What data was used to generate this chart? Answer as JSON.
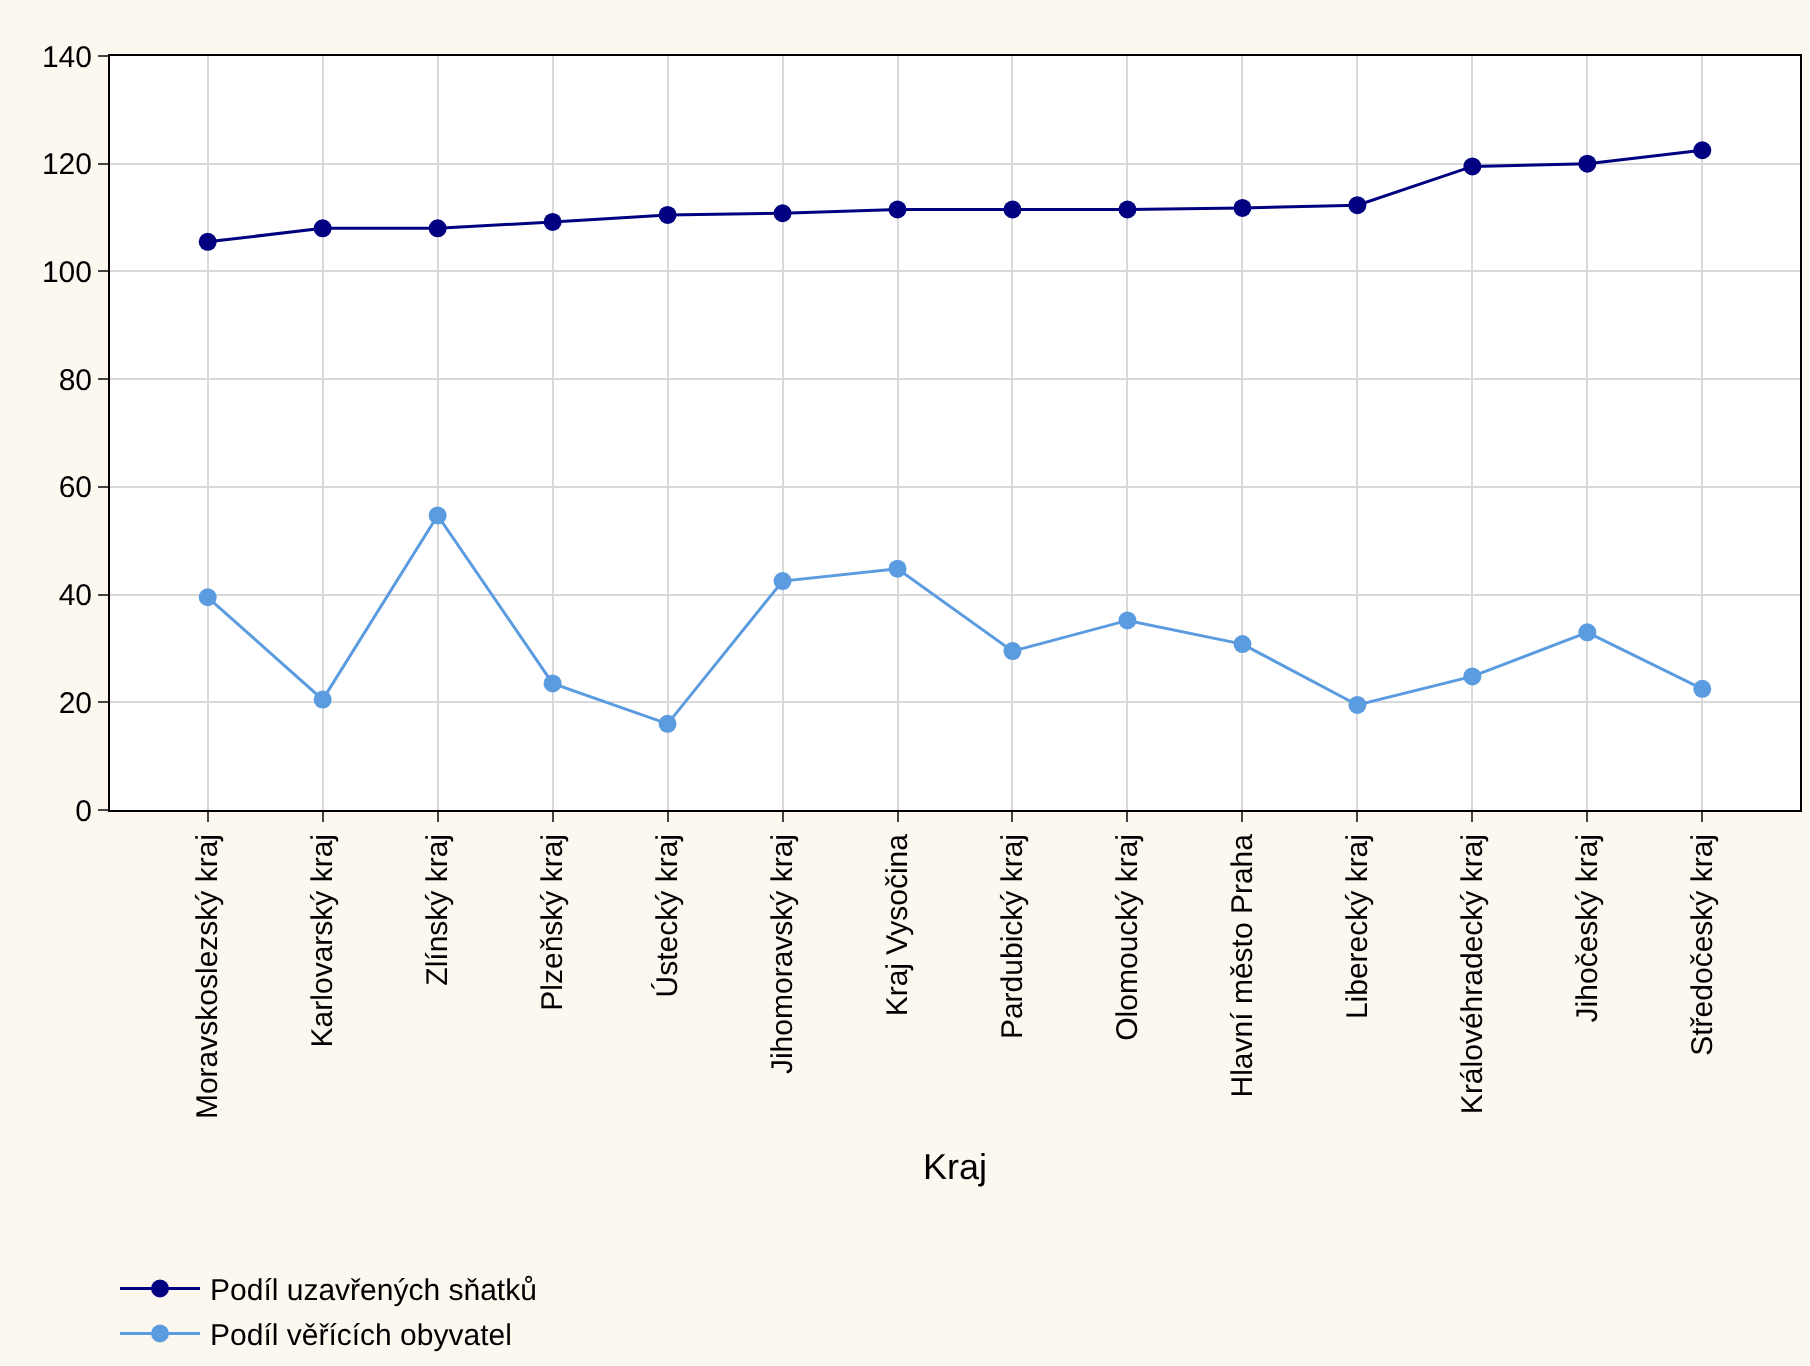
{
  "chart_data": {
    "type": "line",
    "xlabel": "Kraj",
    "categories": [
      "Moravskoslezský kraj",
      "Karlovarský kraj",
      "Zlínský kraj",
      "Plzeňský kraj",
      "Ústecký kraj",
      "Jihomoravský kraj",
      "Kraj Vysočina",
      "Pardubický kraj",
      "Olomoucký kraj",
      "Hlavní město Praha",
      "Liberecký kraj",
      "Královéhradecký kraj",
      "Jihočeský kraj",
      "Středočeský kraj"
    ],
    "series": [
      {
        "name": "Podíl uzavřených sňatků",
        "color": "#000080",
        "values": [
          105.5,
          108,
          108,
          109.2,
          110.5,
          110.8,
          111.5,
          111.5,
          111.5,
          111.8,
          112.3,
          119.5,
          120,
          122.5
        ]
      },
      {
        "name": "Podíl věřících obyvatel",
        "color": "#5b9bdf",
        "values": [
          39.5,
          20.5,
          54.7,
          23.5,
          16,
          42.5,
          44.8,
          29.5,
          35.2,
          30.8,
          19.5,
          24.8,
          33,
          22.5
        ]
      }
    ],
    "ylim": [
      0,
      140
    ],
    "yticks": [
      0,
      20,
      40,
      60,
      80,
      100,
      120,
      140
    ],
    "grid": true,
    "legend": "bottom left",
    "marker": "circle",
    "line_style": "solid"
  }
}
